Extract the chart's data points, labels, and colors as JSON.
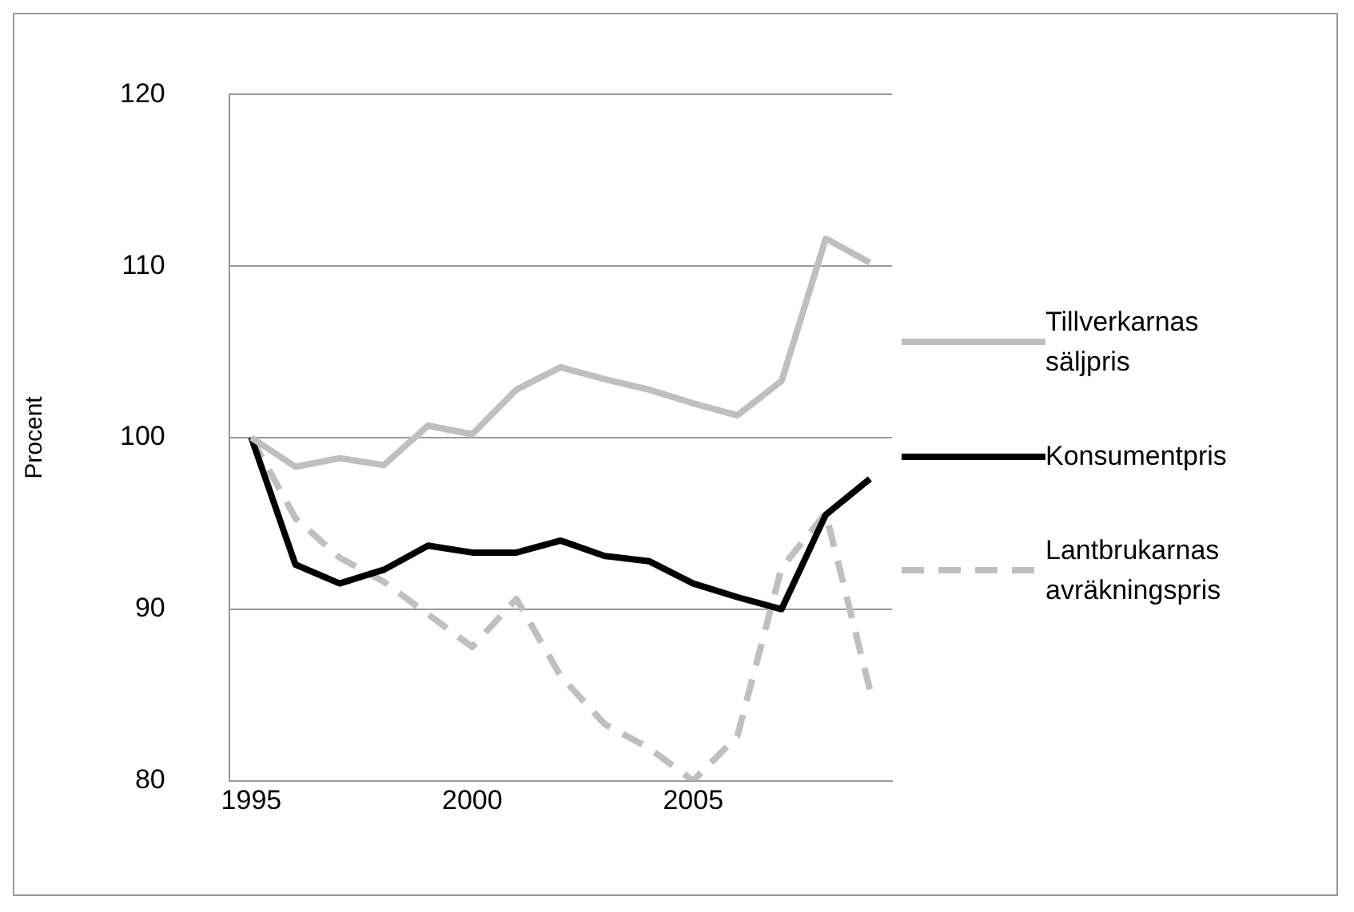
{
  "chart_data": {
    "type": "line",
    "ylabel": "Procent",
    "x": [
      1995,
      1996,
      1997,
      1998,
      1999,
      2000,
      2001,
      2002,
      2003,
      2004,
      2005,
      2006,
      2007,
      2008,
      2009
    ],
    "series": [
      {
        "name": "Tillverkarnas säljpris",
        "color": "#bfbfbf",
        "line_style": "solid",
        "values": [
          100,
          98.3,
          98.8,
          98.4,
          100.7,
          100.2,
          102.8,
          104.1,
          103.4,
          102.8,
          102.0,
          101.3,
          103.3,
          111.6,
          110.2
        ]
      },
      {
        "name": "Konsumentpris",
        "color": "#000000",
        "line_style": "solid",
        "values": [
          100,
          92.6,
          91.5,
          92.3,
          93.7,
          93.3,
          93.3,
          94.0,
          93.1,
          92.8,
          91.5,
          90.7,
          90.0,
          95.5,
          97.6
        ]
      },
      {
        "name": "Lantbrukarnas avräkningspris",
        "color": "#bfbfbf",
        "line_style": "dashed",
        "values": [
          100,
          95.3,
          93.0,
          91.6,
          89.7,
          87.8,
          90.6,
          86.1,
          83.3,
          81.9,
          80.0,
          82.6,
          92.4,
          95.6,
          85.3
        ]
      }
    ],
    "xlim": [
      1994.5,
      2009.5
    ],
    "xticks": [
      1995,
      2000,
      2005
    ],
    "ylim": [
      80,
      120
    ],
    "yticks": [
      80,
      90,
      100,
      110,
      120
    ],
    "grid": "y",
    "legend": "right",
    "marker": "none"
  }
}
